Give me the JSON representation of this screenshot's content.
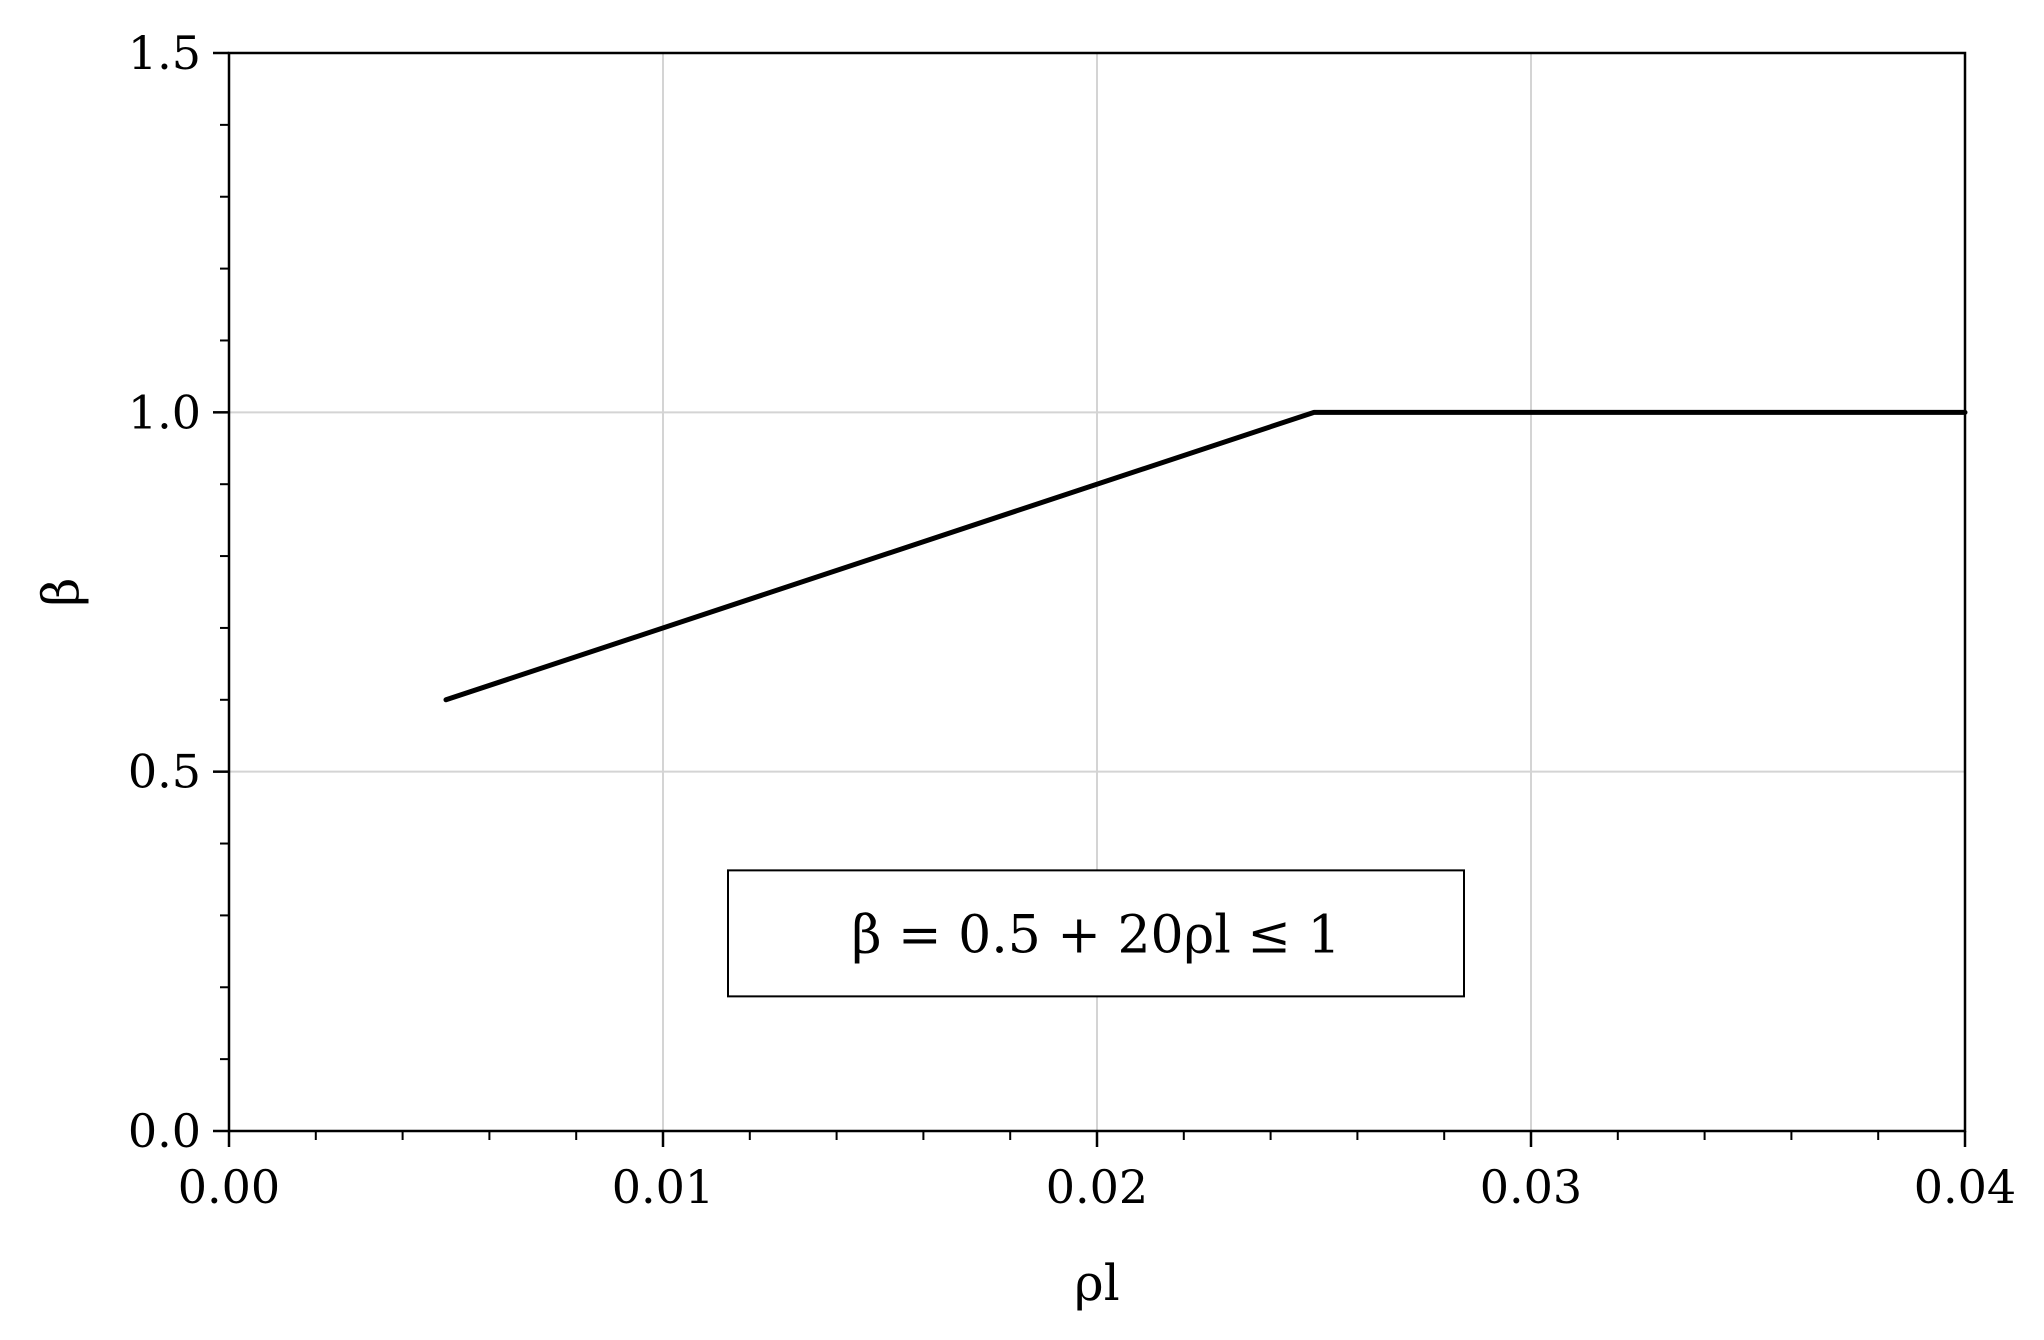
{
  "chart_data": {
    "type": "line",
    "title": "",
    "xlabel": "ρl",
    "ylabel": "β",
    "xlim": [
      0.0,
      0.04
    ],
    "ylim": [
      0.0,
      1.5
    ],
    "grid": true,
    "legend": "none",
    "x_ticks": [
      {
        "value": 0.0,
        "label": "0.00"
      },
      {
        "value": 0.01,
        "label": "0.01"
      },
      {
        "value": 0.02,
        "label": "0.02"
      },
      {
        "value": 0.03,
        "label": "0.03"
      },
      {
        "value": 0.04,
        "label": "0.04"
      }
    ],
    "y_ticks": [
      {
        "value": 0.0,
        "label": "0.0"
      },
      {
        "value": 0.5,
        "label": "0.5"
      },
      {
        "value": 1.0,
        "label": "1.0"
      },
      {
        "value": 1.5,
        "label": "1.5"
      }
    ],
    "x_minor_step": 0.002,
    "y_minor_step": 0.1,
    "series": [
      {
        "color": "#000000",
        "x": [
          0.005,
          0.025,
          0.04
        ],
        "y": [
          0.6,
          1.0,
          1.0
        ]
      }
    ],
    "annotation": {
      "text": "β = 0.5 + 20ρl ≤ 1",
      "anchor_x": 0.02,
      "anchor_y": 0.275
    }
  }
}
